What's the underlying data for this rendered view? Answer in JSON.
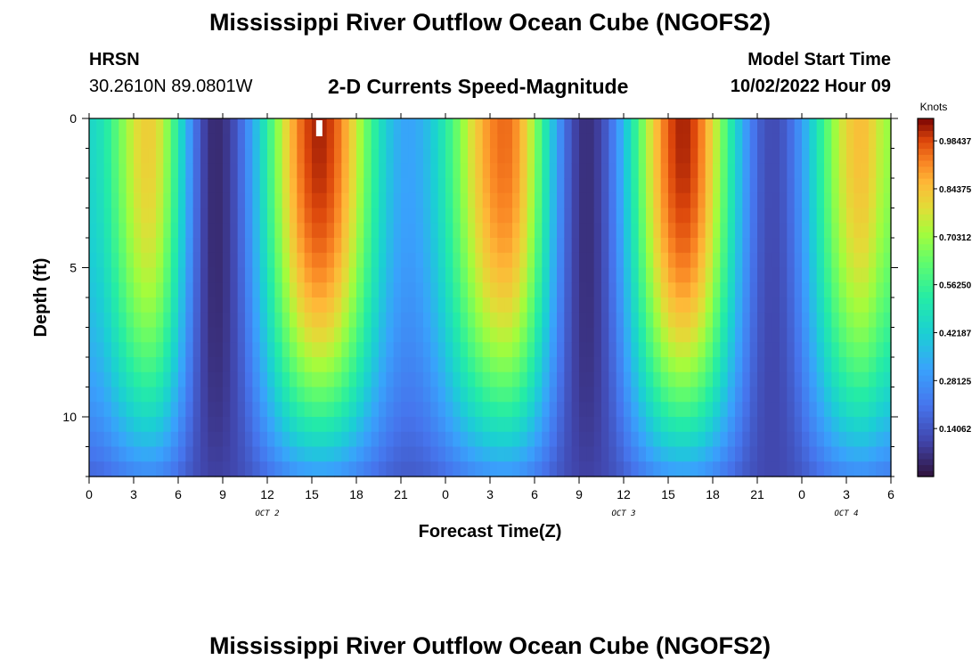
{
  "header": {
    "title": "Mississippi River Outflow Ocean Cube (NGOFS2)",
    "station": "HRSN",
    "coords": "30.2610N  89.0801W",
    "subtitle": "2-D Currents Speed-Magnitude",
    "model_start_label": "Model Start Time",
    "model_start_value": "10/02/2022 Hour 09"
  },
  "footer": {
    "title": "Mississippi River Outflow Ocean Cube (NGOFS2)"
  },
  "chart_data": {
    "type": "heatmap",
    "xlabel": "Forecast Time(Z)",
    "ylabel": "Depth (ft)",
    "x_tick_labels": [
      "0",
      "3",
      "6",
      "9",
      "12",
      "15",
      "18",
      "21",
      "0",
      "3",
      "6",
      "9",
      "12",
      "15",
      "18",
      "21",
      "0",
      "3",
      "6"
    ],
    "x_range_hours": [
      0,
      54
    ],
    "day_labels": [
      {
        "label": "OCT 2",
        "hour": 12
      },
      {
        "label": "OCT 3",
        "hour": 36
      },
      {
        "label": "OCT 4",
        "hour": 51
      }
    ],
    "y_tick_labels": [
      "0",
      "5",
      "10"
    ],
    "y_range_ft": [
      0,
      12
    ],
    "colorbar": {
      "unit": "Knots",
      "range": [
        0,
        1.05
      ],
      "tick_labels": [
        "0.98437",
        "0.84375",
        "0.70312",
        "0.56250",
        "0.42187",
        "0.28125",
        "0.14062"
      ],
      "tick_values": [
        0.98437,
        0.84375,
        0.70312,
        0.5625,
        0.42187,
        0.28125,
        0.14062
      ]
    },
    "surface_speed_profile": {
      "hours": [
        0,
        4,
        8.5,
        15.5,
        21.5,
        28,
        33.5,
        40,
        46,
        52,
        54
      ],
      "speed_knots": [
        0.45,
        0.82,
        0.05,
        1.02,
        0.32,
        0.95,
        0.06,
        1.02,
        0.12,
        0.85,
        0.7
      ]
    },
    "missing_marker": {
      "hour": 15.5
    }
  }
}
